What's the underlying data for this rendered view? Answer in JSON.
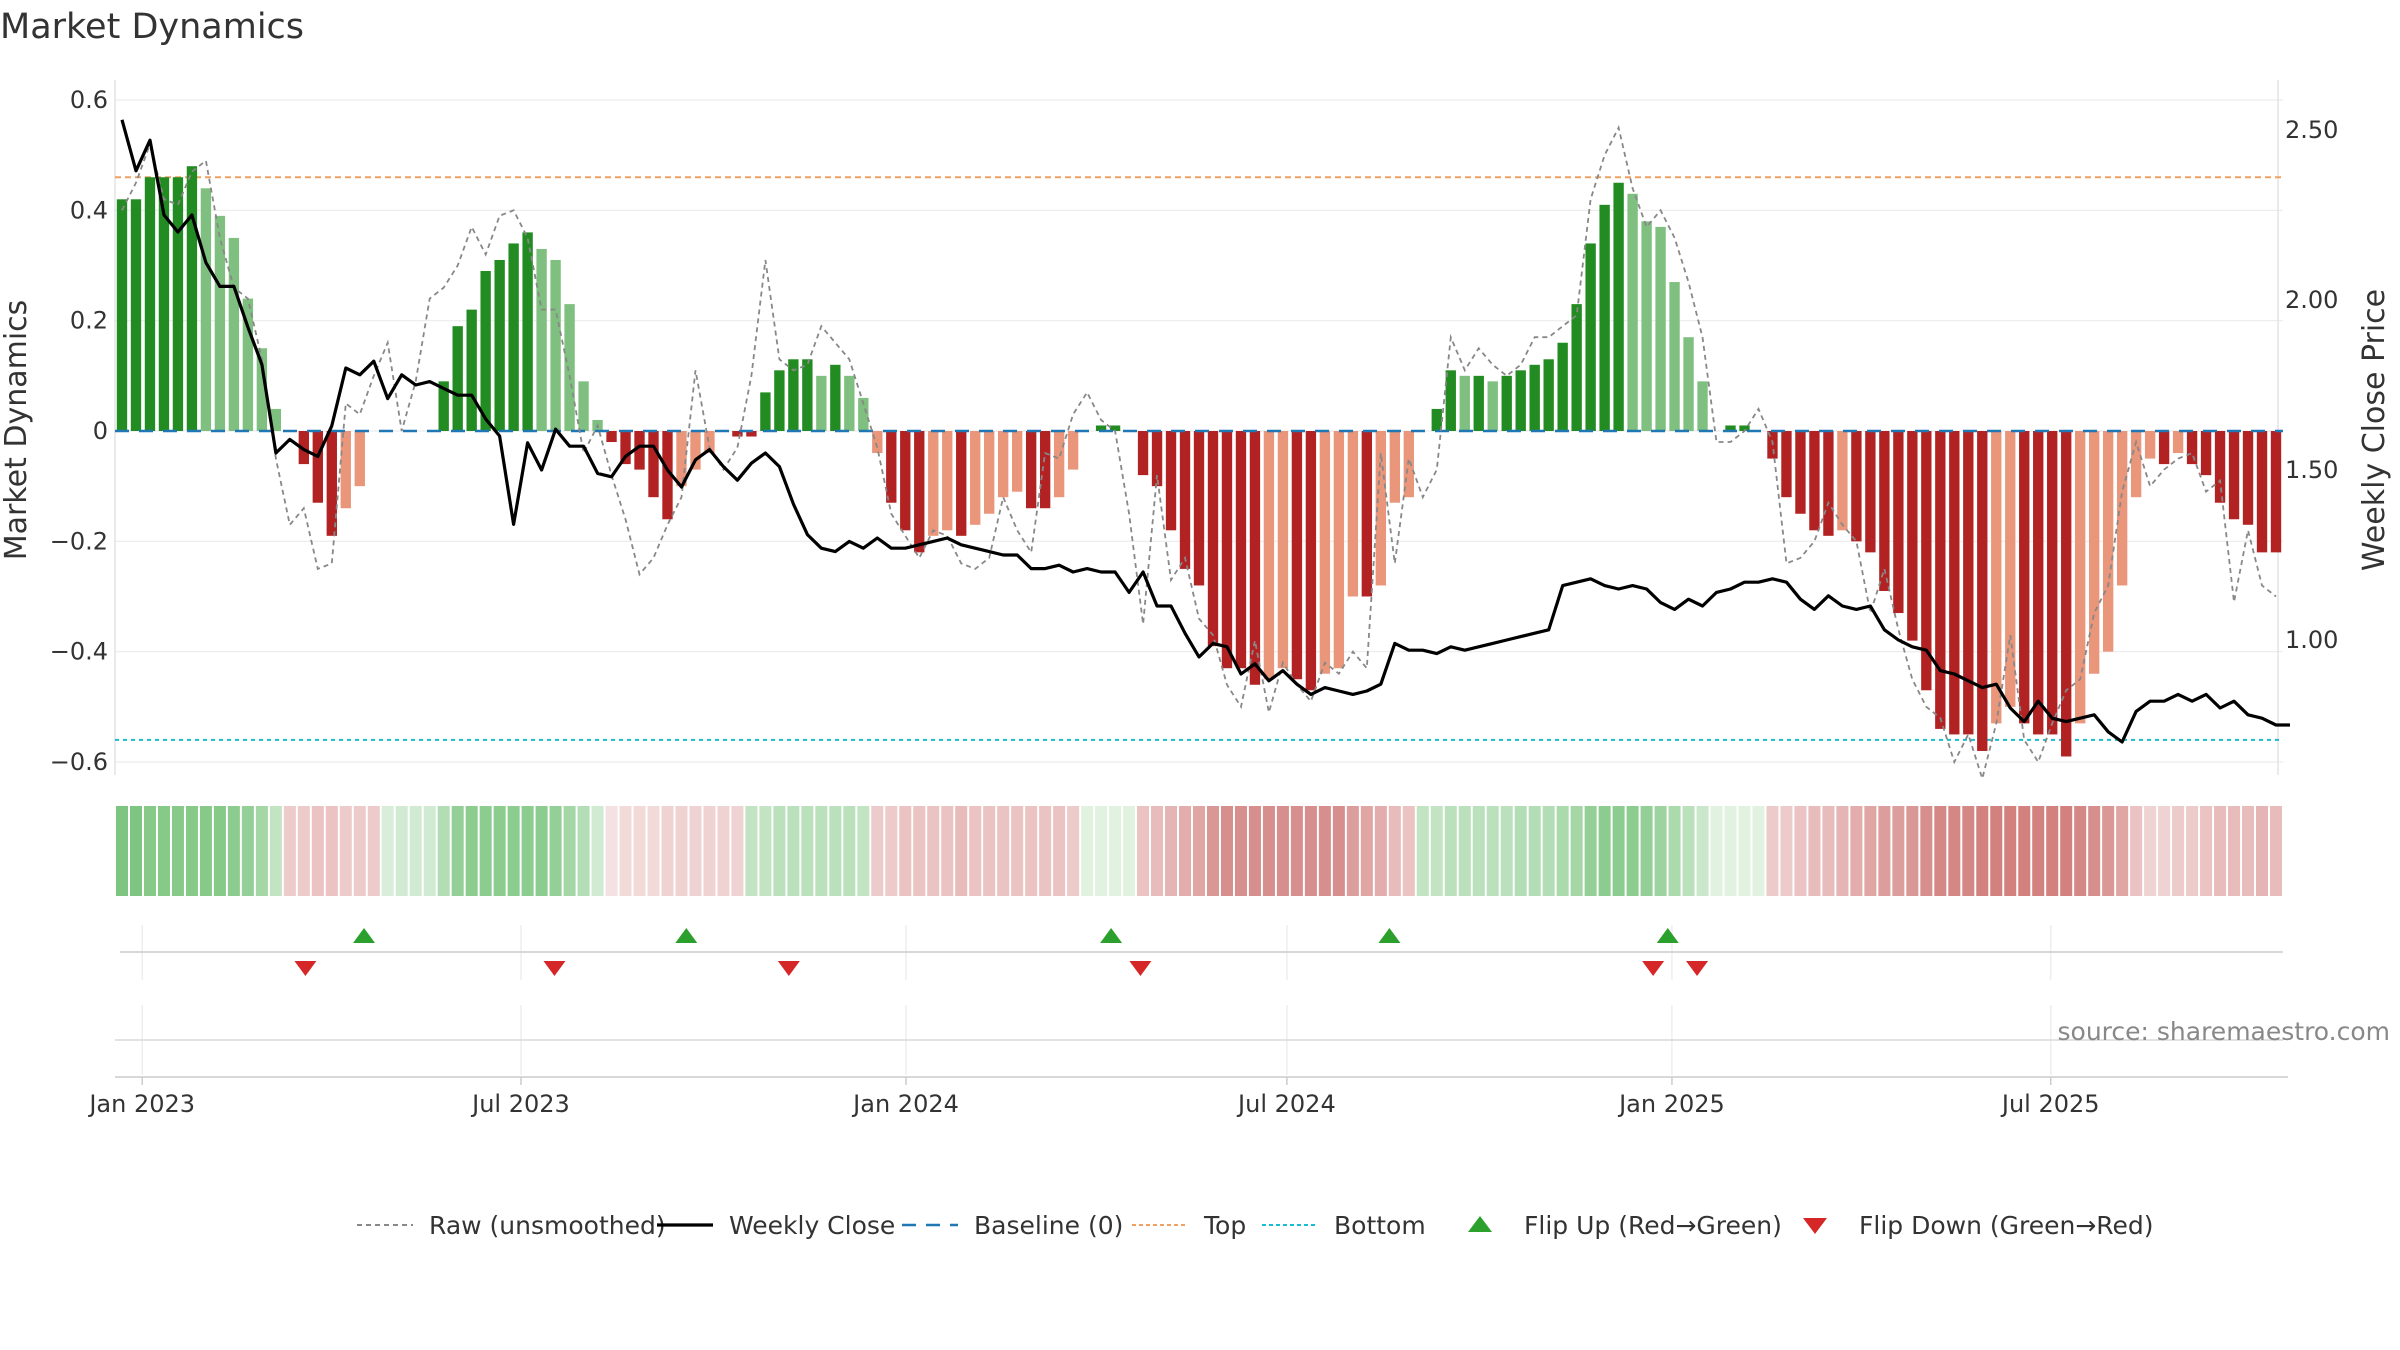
{
  "chart_data": {
    "type": "bar",
    "title": "Market Dynamics",
    "ylabel_left": "Market Dynamics",
    "ylabel_right": "Weekly Close Price",
    "ylim_left": [
      -0.6,
      0.6
    ],
    "ylim_right": [
      0.75,
      2.5
    ],
    "left_ticks": [
      "0.6",
      "0.4",
      "0.2",
      "0",
      "−0.2",
      "−0.4",
      "−0.6"
    ],
    "left_tick_values": [
      0.6,
      0.4,
      0.2,
      0,
      -0.2,
      -0.4,
      -0.6
    ],
    "right_ticks": [
      "2.50",
      "2.00",
      "1.50",
      "1.00"
    ],
    "right_tick_values": [
      2.5,
      2.0,
      1.5,
      1.0
    ],
    "x_ticks": [
      "Jan 2023",
      "Jul 2023",
      "Jan 2024",
      "Jul 2024",
      "Jan 2025",
      "Jul 2025"
    ],
    "x_tick_dates": [
      "2023-01-01",
      "2023-07-01",
      "2024-01-01",
      "2024-07-01",
      "2025-01-01",
      "2025-07-01"
    ],
    "x_start": "2022-12-19",
    "x_end": "2025-10-20",
    "top_line": 0.46,
    "bottom_line": -0.56,
    "baseline": 0,
    "source": "source: sharemaestro.com",
    "colors": {
      "strong_green": "#228b22",
      "weak_green": "#7fbf7f",
      "strong_red": "#b22222",
      "weak_red": "#e9967a",
      "close": "#000000",
      "raw": "#888888",
      "baseline": "#1f77b4",
      "top": "#f0a060",
      "bottom": "#17becf",
      "flip_up": "#2ca02c",
      "flip_down": "#d62728"
    },
    "series": [
      {
        "name": "Market Dynamics",
        "values": [
          0.42,
          0.42,
          0.46,
          0.46,
          0.46,
          0.48,
          0.44,
          0.39,
          0.35,
          0.24,
          0.15,
          0.04,
          0.0,
          -0.06,
          -0.13,
          -0.19,
          -0.14,
          -0.1,
          0.0,
          0.0,
          0.0,
          0.0,
          0.0,
          0.09,
          0.19,
          0.22,
          0.29,
          0.31,
          0.34,
          0.36,
          0.33,
          0.31,
          0.23,
          0.09,
          0.02,
          -0.02,
          -0.06,
          -0.07,
          -0.12,
          -0.16,
          -0.1,
          -0.07,
          -0.04,
          0.0,
          -0.01,
          -0.01,
          0.07,
          0.11,
          0.13,
          0.13,
          0.1,
          0.12,
          0.1,
          0.06,
          -0.04,
          -0.13,
          -0.18,
          -0.22,
          -0.19,
          -0.18,
          -0.19,
          -0.17,
          -0.15,
          -0.12,
          -0.11,
          -0.14,
          -0.14,
          -0.12,
          -0.07,
          0.0,
          0.01,
          0.01,
          0.0,
          -0.08,
          -0.1,
          -0.18,
          -0.25,
          -0.28,
          -0.39,
          -0.43,
          -0.43,
          -0.46,
          -0.45,
          -0.43,
          -0.45,
          -0.47,
          -0.44,
          -0.43,
          -0.3,
          -0.3,
          -0.28,
          -0.13,
          -0.12,
          0.0,
          0.04,
          0.11,
          0.1,
          0.1,
          0.09,
          0.1,
          0.11,
          0.12,
          0.13,
          0.16,
          0.23,
          0.34,
          0.41,
          0.45,
          0.43,
          0.38,
          0.37,
          0.27,
          0.17,
          0.09,
          0.0,
          0.01,
          0.01,
          0.0,
          -0.05,
          -0.12,
          -0.15,
          -0.18,
          -0.19,
          -0.18,
          -0.2,
          -0.22,
          -0.29,
          -0.33,
          -0.38,
          -0.47,
          -0.54,
          -0.55,
          -0.55,
          -0.58,
          -0.53,
          -0.5,
          -0.53,
          -0.55,
          -0.55,
          -0.59,
          -0.53,
          -0.44,
          -0.4,
          -0.28,
          -0.12,
          -0.05,
          -0.06,
          -0.04,
          -0.06,
          -0.08,
          -0.13,
          -0.16,
          -0.17,
          -0.22,
          -0.22
        ]
      },
      {
        "name": "Raw (unsmoothed)",
        "values": [
          0.4,
          0.45,
          0.52,
          0.42,
          0.41,
          0.47,
          0.49,
          0.35,
          0.26,
          0.24,
          0.13,
          -0.05,
          -0.17,
          -0.14,
          -0.25,
          -0.24,
          0.05,
          0.03,
          0.1,
          0.16,
          0.0,
          0.09,
          0.24,
          0.26,
          0.3,
          0.37,
          0.32,
          0.39,
          0.4,
          0.35,
          0.22,
          0.22,
          0.1,
          -0.04,
          0.01,
          -0.08,
          -0.16,
          -0.26,
          -0.23,
          -0.17,
          -0.12,
          0.11,
          -0.03,
          -0.07,
          -0.03,
          0.1,
          0.31,
          0.13,
          0.11,
          0.12,
          0.19,
          0.16,
          0.13,
          0.05,
          -0.03,
          -0.15,
          -0.19,
          -0.23,
          -0.18,
          -0.19,
          -0.24,
          -0.25,
          -0.23,
          -0.12,
          -0.18,
          -0.22,
          -0.04,
          -0.05,
          0.03,
          0.07,
          0.02,
          0.0,
          -0.15,
          -0.35,
          -0.08,
          -0.27,
          -0.23,
          -0.34,
          -0.37,
          -0.46,
          -0.5,
          -0.38,
          -0.51,
          -0.42,
          -0.46,
          -0.49,
          -0.42,
          -0.44,
          -0.4,
          -0.43,
          -0.04,
          -0.24,
          -0.05,
          -0.12,
          -0.07,
          0.17,
          0.11,
          0.15,
          0.12,
          0.1,
          0.12,
          0.17,
          0.17,
          0.19,
          0.21,
          0.42,
          0.5,
          0.55,
          0.44,
          0.37,
          0.4,
          0.35,
          0.27,
          0.17,
          -0.02,
          -0.02,
          0.0,
          0.04,
          -0.02,
          -0.24,
          -0.23,
          -0.2,
          -0.13,
          -0.17,
          -0.2,
          -0.33,
          -0.25,
          -0.36,
          -0.45,
          -0.5,
          -0.52,
          -0.6,
          -0.55,
          -0.63,
          -0.53,
          -0.37,
          -0.56,
          -0.6,
          -0.53,
          -0.47,
          -0.45,
          -0.33,
          -0.28,
          -0.11,
          -0.02,
          -0.1,
          -0.07,
          -0.05,
          -0.04,
          -0.11,
          -0.09,
          -0.31,
          -0.18,
          -0.28,
          -0.3
        ]
      },
      {
        "name": "Weekly Close",
        "values": [
          2.53,
          2.38,
          2.47,
          2.25,
          2.2,
          2.25,
          2.11,
          2.04,
          2.04,
          1.92,
          1.81,
          1.55,
          1.59,
          1.56,
          1.54,
          1.63,
          1.8,
          1.78,
          1.82,
          1.71,
          1.78,
          1.75,
          1.76,
          1.74,
          1.72,
          1.72,
          1.65,
          1.6,
          1.34,
          1.58,
          1.5,
          1.62,
          1.57,
          1.57,
          1.49,
          1.48,
          1.54,
          1.57,
          1.57,
          1.5,
          1.45,
          1.53,
          1.56,
          1.51,
          1.47,
          1.52,
          1.55,
          1.51,
          1.4,
          1.31,
          1.27,
          1.26,
          1.29,
          1.27,
          1.3,
          1.27,
          1.27,
          1.28,
          1.29,
          1.3,
          1.28,
          1.27,
          1.26,
          1.25,
          1.25,
          1.21,
          1.21,
          1.22,
          1.2,
          1.21,
          1.2,
          1.2,
          1.14,
          1.2,
          1.1,
          1.1,
          1.02,
          0.95,
          0.99,
          0.98,
          0.9,
          0.93,
          0.88,
          0.91,
          0.87,
          0.84,
          0.86,
          0.85,
          0.84,
          0.85,
          0.87,
          0.99,
          0.97,
          0.97,
          0.96,
          0.98,
          0.97,
          0.98,
          0.99,
          1.0,
          1.01,
          1.02,
          1.03,
          1.16,
          1.17,
          1.18,
          1.16,
          1.15,
          1.16,
          1.15,
          1.11,
          1.09,
          1.12,
          1.1,
          1.14,
          1.15,
          1.17,
          1.17,
          1.18,
          1.17,
          1.12,
          1.09,
          1.13,
          1.1,
          1.09,
          1.1,
          1.03,
          1.0,
          0.98,
          0.97,
          0.91,
          0.9,
          0.88,
          0.86,
          0.87,
          0.8,
          0.76,
          0.82,
          0.77,
          0.76,
          0.77,
          0.78,
          0.73,
          0.7,
          0.79,
          0.82,
          0.82,
          0.84,
          0.82,
          0.84,
          0.8,
          0.82,
          0.78,
          0.77,
          0.75,
          0.75
        ]
      }
    ],
    "regime_strip": [
      0.85,
      0.85,
      0.8,
      0.8,
      0.8,
      0.8,
      0.8,
      0.8,
      0.75,
      0.7,
      0.6,
      0.4,
      -0.35,
      -0.35,
      -0.4,
      -0.4,
      -0.35,
      -0.35,
      -0.35,
      0.25,
      0.3,
      0.3,
      0.3,
      0.5,
      0.7,
      0.75,
      0.75,
      0.75,
      0.75,
      0.75,
      0.75,
      0.7,
      0.6,
      0.5,
      0.3,
      -0.2,
      -0.25,
      -0.25,
      -0.25,
      -0.3,
      -0.3,
      -0.3,
      -0.3,
      -0.3,
      -0.3,
      0.4,
      0.4,
      0.45,
      0.45,
      0.45,
      0.45,
      0.45,
      0.45,
      0.4,
      -0.35,
      -0.35,
      -0.4,
      -0.4,
      -0.4,
      -0.4,
      -0.45,
      -0.4,
      -0.4,
      -0.4,
      -0.4,
      -0.4,
      -0.4,
      -0.4,
      -0.35,
      0.2,
      0.2,
      0.2,
      0.2,
      -0.4,
      -0.45,
      -0.5,
      -0.55,
      -0.6,
      -0.7,
      -0.75,
      -0.75,
      -0.75,
      -0.75,
      -0.75,
      -0.75,
      -0.75,
      -0.75,
      -0.75,
      -0.65,
      -0.6,
      -0.55,
      -0.45,
      -0.4,
      0.4,
      0.4,
      0.45,
      0.45,
      0.45,
      0.45,
      0.45,
      0.5,
      0.5,
      0.5,
      0.55,
      0.6,
      0.7,
      0.75,
      0.75,
      0.75,
      0.7,
      0.65,
      0.55,
      0.45,
      0.35,
      0.2,
      0.2,
      0.2,
      0.2,
      -0.35,
      -0.35,
      -0.4,
      -0.45,
      -0.45,
      -0.5,
      -0.55,
      -0.6,
      -0.65,
      -0.65,
      -0.7,
      -0.75,
      -0.8,
      -0.8,
      -0.8,
      -0.85,
      -0.85,
      -0.85,
      -0.85,
      -0.85,
      -0.85,
      -0.85,
      -0.8,
      -0.75,
      -0.7,
      -0.6,
      -0.4,
      -0.3,
      -0.3,
      -0.35,
      -0.35,
      -0.4,
      -0.45,
      -0.45,
      -0.45,
      -0.5,
      -0.45
    ],
    "flip_up_dates": [
      "2023-04-17",
      "2023-09-18",
      "2024-04-08",
      "2024-08-19",
      "2024-12-30"
    ],
    "flip_down_dates": [
      "2023-03-20",
      "2023-07-17",
      "2023-11-06",
      "2024-04-22",
      "2024-12-23",
      "2025-01-13"
    ],
    "legend": [
      {
        "label": "Raw (unsmoothed)",
        "style": "dashed-gray"
      },
      {
        "label": "Weekly Close",
        "style": "solid-black"
      },
      {
        "label": "Baseline (0)",
        "style": "dashed-blue"
      },
      {
        "label": "Top",
        "style": "dotted-orange"
      },
      {
        "label": "Bottom",
        "style": "dotted-cyan"
      },
      {
        "label": "Flip Up (Red→Green)",
        "style": "triangle-up"
      },
      {
        "label": "Flip Down (Green→Red)",
        "style": "triangle-down"
      }
    ]
  }
}
